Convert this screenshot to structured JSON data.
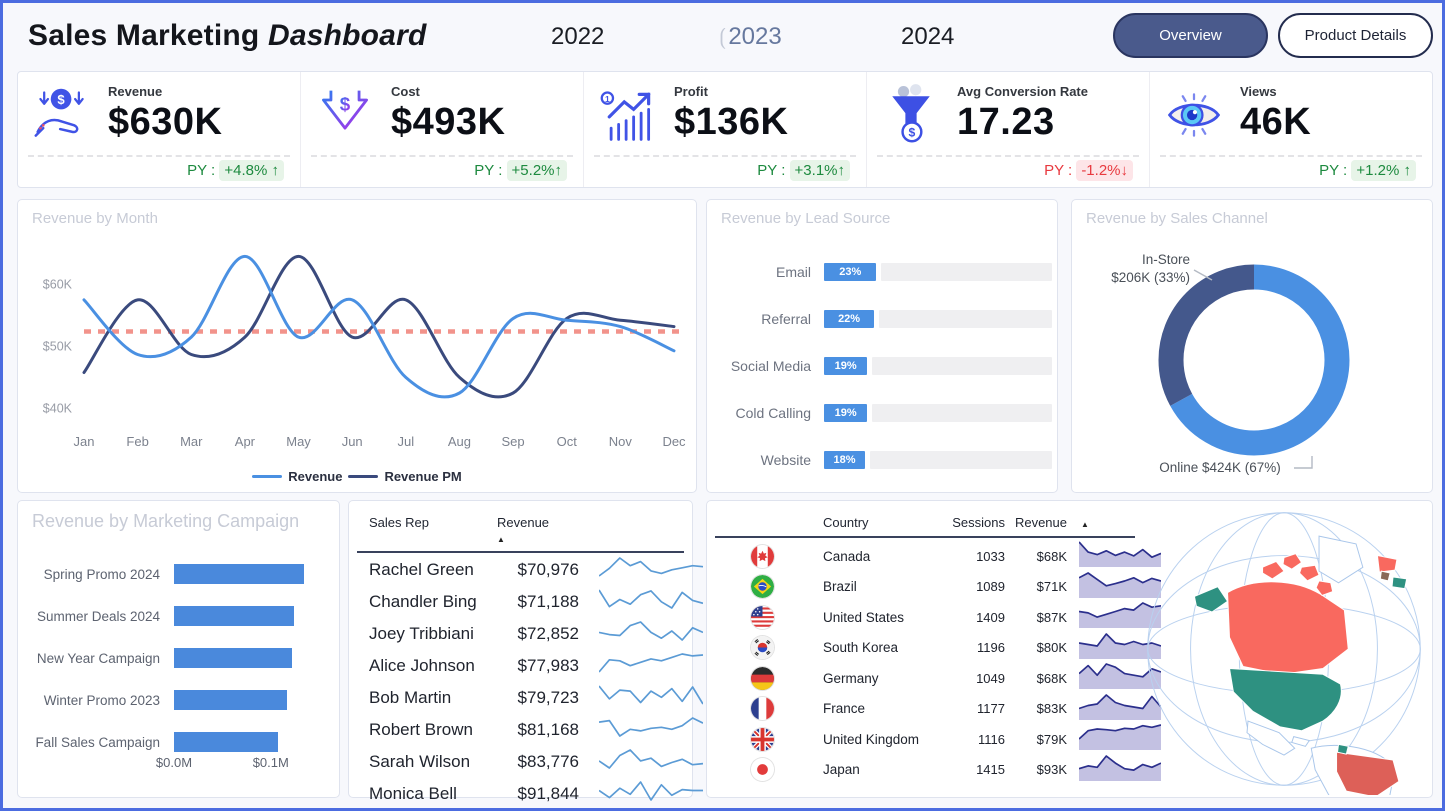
{
  "header": {
    "title_regular": "Sales Marketing ",
    "title_italic": "Dashboard",
    "years": [
      {
        "label": "2022",
        "selected": false
      },
      {
        "label": "2023",
        "selected": true
      },
      {
        "label": "2024",
        "selected": false
      }
    ],
    "buttons": [
      {
        "label": "Overview",
        "active": true
      },
      {
        "label": "Product Details",
        "active": false
      }
    ]
  },
  "kpis": [
    {
      "icon": "hand-coin-icon",
      "label": "Revenue",
      "value": "$630K",
      "py_label": "PY :",
      "py_value": "+4.8% ↑",
      "trend": "up"
    },
    {
      "icon": "cost-down-arrow-icon",
      "label": "Cost",
      "value": "$493K",
      "py_label": "PY :",
      "py_value": "+5.2%↑",
      "trend": "up"
    },
    {
      "icon": "profit-growth-icon",
      "label": "Profit",
      "value": "$136K",
      "py_label": "PY :",
      "py_value": "+3.1%↑",
      "trend": "up"
    },
    {
      "icon": "conversion-funnel-icon",
      "label": "Avg Conversion Rate",
      "value": "17.23",
      "py_label": "PY :",
      "py_value": "-1.2%↓",
      "trend": "down"
    },
    {
      "icon": "eye-views-icon",
      "label": "Views",
      "value": "46K",
      "py_label": "PY :",
      "py_value": "+1.2% ↑",
      "trend": "up"
    }
  ],
  "chart_data": [
    {
      "id": "revenue_by_month",
      "type": "line",
      "title": "Revenue by Month",
      "x": [
        "Jan",
        "Feb",
        "Mar",
        "Apr",
        "May",
        "Jun",
        "Jul",
        "Aug",
        "Sep",
        "Oct",
        "Nov",
        "Dec"
      ],
      "series": [
        {
          "name": "Revenue",
          "color": "#4a90e2",
          "values": [
            57.5,
            48.7,
            51.5,
            64.5,
            51.5,
            57.5,
            45.0,
            42.5,
            54.5,
            54.2,
            53.2,
            49.3
          ]
        },
        {
          "name": "Revenue PM",
          "color": "#3a4a7d",
          "values": [
            45.8,
            57.5,
            48.7,
            51.5,
            64.5,
            51.5,
            57.5,
            45.0,
            42.5,
            54.5,
            54.2,
            53.2
          ]
        }
      ],
      "avg_line": {
        "value": 52.4,
        "color": "#f2938b"
      },
      "yticks": [
        {
          "label": "$40K",
          "value": 40
        },
        {
          "label": "$50K",
          "value": 50
        },
        {
          "label": "$60K",
          "value": 60
        }
      ],
      "ylim": [
        37.5,
        66.5
      ],
      "grid": false,
      "legend_position": "bottom"
    },
    {
      "id": "revenue_by_lead_source",
      "type": "bar",
      "title": "Revenue by Lead Source",
      "categories": [
        "Email",
        "Referral",
        "Social Media",
        "Cold Calling",
        "Website"
      ],
      "values": [
        23,
        22,
        19,
        19,
        18
      ],
      "unit": "%",
      "xlim": [
        0,
        100
      ],
      "bar_color": "#4a90e2"
    },
    {
      "id": "revenue_by_sales_channel",
      "type": "pie",
      "title": "Revenue by Sales Channel",
      "donut": true,
      "segments": [
        {
          "name": "Online",
          "value_k": 424,
          "pct": 67,
          "color": "#4a90e2",
          "label_lines": [
            "Online $424K (67%)"
          ]
        },
        {
          "name": "In-Store",
          "value_k": 206,
          "pct": 33,
          "color": "#44588c",
          "label_lines": [
            "In-Store",
            "$206K (33%)"
          ]
        }
      ]
    },
    {
      "id": "revenue_by_marketing_campaign",
      "type": "bar",
      "title": "Revenue by Marketing Campaign",
      "categories": [
        "Spring Promo 2024",
        "Summer Deals 2024",
        "New Year Campaign",
        "Winter Promo 2023",
        "Fall Sales Campaign"
      ],
      "values": [
        0.134,
        0.124,
        0.122,
        0.117,
        0.107
      ],
      "unit": "$M",
      "xlim": [
        0,
        0.155
      ],
      "xticks": [
        {
          "label": "$0.0M",
          "value": 0
        },
        {
          "label": "$0.1M",
          "value": 0.1
        }
      ],
      "bar_color": "#4a89dc"
    },
    {
      "id": "sales_rep_table",
      "type": "table",
      "columns": [
        "Sales Rep",
        "Revenue"
      ],
      "sort_indicator": "▲",
      "rows": [
        {
          "name": "Rachel Green",
          "revenue": "$70,976",
          "trend": [
            40,
            55,
            75,
            60,
            68,
            50,
            45,
            52,
            56,
            60,
            58
          ]
        },
        {
          "name": "Chandler Bing",
          "revenue": "$71,188",
          "trend": [
            80,
            45,
            60,
            50,
            70,
            78,
            55,
            42,
            75,
            58,
            52
          ]
        },
        {
          "name": "Joey Tribbiani",
          "revenue": "$72,852",
          "trend": [
            55,
            50,
            48,
            70,
            78,
            55,
            42,
            58,
            38,
            65,
            55
          ]
        },
        {
          "name": "Alice Johnson",
          "revenue": "$77,983",
          "trend": [
            35,
            60,
            58,
            48,
            55,
            62,
            58,
            65,
            72,
            68,
            70
          ]
        },
        {
          "name": "Bob Martin",
          "revenue": "$79,723",
          "trend": [
            70,
            45,
            62,
            60,
            38,
            60,
            48,
            65,
            40,
            68,
            35
          ]
        },
        {
          "name": "Robert Brown",
          "revenue": "$81,168",
          "trend": [
            62,
            65,
            35,
            48,
            45,
            50,
            52,
            48,
            55,
            70,
            60
          ]
        },
        {
          "name": "Sarah Wilson",
          "revenue": "$83,776",
          "trend": [
            55,
            42,
            65,
            75,
            55,
            60,
            45,
            52,
            58,
            48,
            50
          ]
        },
        {
          "name": "Monica Bell",
          "revenue": "$91,844",
          "trend": [
            50,
            35,
            55,
            42,
            68,
            30,
            62,
            40,
            52,
            50,
            50
          ]
        }
      ]
    },
    {
      "id": "country_table",
      "type": "table",
      "columns": [
        "Country",
        "Sessions",
        "Revenue"
      ],
      "sort_indicator": "▲",
      "rows": [
        {
          "flag": "flag-canada-icon",
          "country": "Canada",
          "sessions": "1033",
          "revenue": "$68K",
          "trend": [
            95,
            55,
            45,
            60,
            42,
            55,
            40,
            65,
            35,
            50
          ]
        },
        {
          "flag": "flag-brazil-icon",
          "country": "Brazil",
          "sessions": "1089",
          "revenue": "$71K",
          "trend": [
            60,
            75,
            55,
            35,
            42,
            50,
            60,
            45,
            58,
            50
          ]
        },
        {
          "flag": "flag-united-states-icon",
          "country": "United States",
          "sessions": "1409",
          "revenue": "$87K",
          "trend": [
            55,
            50,
            35,
            45,
            55,
            65,
            60,
            85,
            70,
            75
          ]
        },
        {
          "flag": "flag-south-korea-icon",
          "country": "South Korea",
          "sessions": "1196",
          "revenue": "$80K",
          "trend": [
            50,
            45,
            40,
            80,
            50,
            45,
            55,
            45,
            50,
            40
          ]
        },
        {
          "flag": "flag-germany-icon",
          "country": "Germany",
          "sessions": "1049",
          "revenue": "$68K",
          "trend": [
            45,
            70,
            40,
            75,
            65,
            45,
            40,
            35,
            60,
            50
          ]
        },
        {
          "flag": "flag-france-icon",
          "country": "France",
          "sessions": "1177",
          "revenue": "$83K",
          "trend": [
            35,
            45,
            50,
            80,
            55,
            45,
            40,
            35,
            75,
            40
          ]
        },
        {
          "flag": "flag-united-kingdom-icon",
          "country": "United Kingdom",
          "sessions": "1116",
          "revenue": "$79K",
          "trend": [
            30,
            55,
            60,
            58,
            55,
            62,
            60,
            70,
            65,
            72
          ]
        },
        {
          "flag": "flag-japan-icon",
          "country": "Japan",
          "sessions": "1415",
          "revenue": "$93K",
          "trend": [
            40,
            50,
            45,
            85,
            60,
            40,
            35,
            55,
            45,
            60
          ]
        }
      ]
    },
    {
      "id": "world_map",
      "type": "map",
      "regions": [
        {
          "name": "Canada",
          "color": "#f9695f"
        },
        {
          "name": "United States",
          "color": "#2e9181"
        },
        {
          "name": "Brazil",
          "color": "#dd6058"
        }
      ]
    }
  ]
}
